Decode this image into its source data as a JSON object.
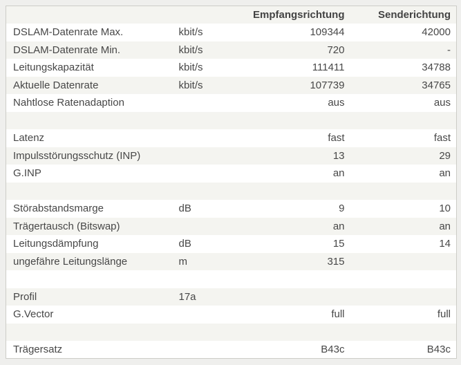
{
  "colors": {
    "page_background": "#efefed",
    "row_stripe": "#f4f4f0",
    "table_border": "#ccccc7",
    "text": "#474747"
  },
  "table": {
    "header": {
      "label": "",
      "unit": "",
      "rx": "Empfangsrichtung",
      "tx": "Senderichtung"
    },
    "rows": [
      {
        "label": "DSLAM-Datenrate Max.",
        "unit": "kbit/s",
        "rx": "109344",
        "tx": "42000"
      },
      {
        "label": "DSLAM-Datenrate Min.",
        "unit": "kbit/s",
        "rx": "720",
        "tx": "-"
      },
      {
        "label": "Leitungskapazität",
        "unit": "kbit/s",
        "rx": "111411",
        "tx": "34788"
      },
      {
        "label": "Aktuelle Datenrate",
        "unit": "kbit/s",
        "rx": "107739",
        "tx": "34765"
      },
      {
        "label": "Nahtlose Ratenadaption",
        "unit": "",
        "rx": "aus",
        "tx": "aus"
      },
      {
        "label": "",
        "unit": "",
        "rx": "",
        "tx": ""
      },
      {
        "label": "Latenz",
        "unit": "",
        "rx": "fast",
        "tx": "fast"
      },
      {
        "label": "Impulsstörungsschutz (INP)",
        "unit": "",
        "rx": "13",
        "tx": "29"
      },
      {
        "label": "G.INP",
        "unit": "",
        "rx": "an",
        "tx": "an"
      },
      {
        "label": "",
        "unit": "",
        "rx": "",
        "tx": ""
      },
      {
        "label": "Störabstandsmarge",
        "unit": "dB",
        "rx": "9",
        "tx": "10"
      },
      {
        "label": "Trägertausch (Bitswap)",
        "unit": "",
        "rx": "an",
        "tx": "an"
      },
      {
        "label": "Leitungsdämpfung",
        "unit": "dB",
        "rx": "15",
        "tx": "14"
      },
      {
        "label": "ungefähre Leitungslänge",
        "unit": "m",
        "rx": "315",
        "tx": ""
      },
      {
        "label": "",
        "unit": "",
        "rx": "",
        "tx": ""
      },
      {
        "label": "Profil",
        "unit": "17a",
        "rx": "",
        "tx": ""
      },
      {
        "label": "G.Vector",
        "unit": "",
        "rx": "full",
        "tx": "full"
      },
      {
        "label": "",
        "unit": "",
        "rx": "",
        "tx": ""
      },
      {
        "label": "Trägersatz",
        "unit": "",
        "rx": "B43c",
        "tx": "B43c"
      }
    ]
  }
}
